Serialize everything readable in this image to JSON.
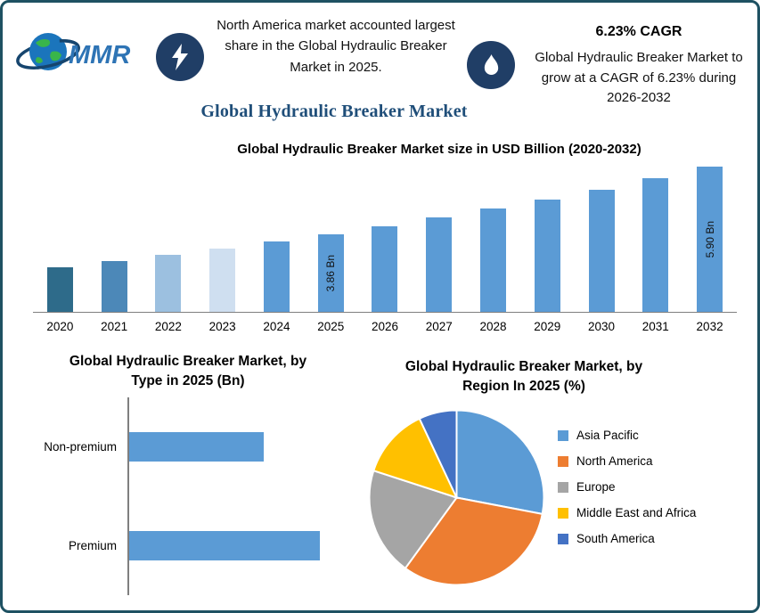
{
  "header": {
    "logo_text": "MMR",
    "highlight": "North America market accounted largest share in the Global Hydraulic Breaker Market in 2025.",
    "cagr_title": "6.23% CAGR",
    "cagr_text": "Global Hydraulic Breaker Market to grow at a CAGR of 6.23% during 2026-2032",
    "main_title": "Global Hydraulic Breaker Market"
  },
  "colors": {
    "accent_navy": "#1f4e79",
    "badge_navy": "#203e66",
    "frame_border": "#1e5162",
    "bar_blue": "#5b9bd5"
  },
  "icons": {
    "left_badge": "lightning-icon",
    "right_badge": "flame-icon",
    "logo": "globe-icon"
  },
  "chart_data": [
    {
      "id": "market_size",
      "type": "bar",
      "title": "Global Hydraulic Breaker Market size in USD Billion (2020-2032)",
      "categories": [
        "2020",
        "2021",
        "2022",
        "2023",
        "2024",
        "2025",
        "2026",
        "2027",
        "2028",
        "2029",
        "2030",
        "2031",
        "2032"
      ],
      "values": [
        2.85,
        3.03,
        3.22,
        3.42,
        3.63,
        3.86,
        4.1,
        4.36,
        4.63,
        4.92,
        5.22,
        5.55,
        5.9
      ],
      "unit": "USD Billion",
      "bar_labels": {
        "2025": "3.86 Bn",
        "2032": "5.90 Bn"
      },
      "bar_colors": [
        "#2e6b8a",
        "#4c88b8",
        "#9cc0e0",
        "#cfdff0",
        "#5b9bd5",
        "#5b9bd5",
        "#5b9bd5",
        "#5b9bd5",
        "#5b9bd5",
        "#5b9bd5",
        "#5b9bd5",
        "#5b9bd5",
        "#5b9bd5"
      ],
      "ylim": [
        1.5,
        6.1
      ],
      "grid": false,
      "legend": "none"
    },
    {
      "id": "by_type",
      "type": "bar",
      "orientation": "horizontal",
      "title": "Global Hydraulic Breaker Market, by Type in 2025 (Bn)",
      "title_lines": [
        "Global Hydraulic Breaker Market, by",
        "Type in 2025 (Bn)"
      ],
      "categories": [
        "Non-premium",
        "Premium"
      ],
      "values": [
        1.6,
        2.26
      ],
      "unit": "Bn",
      "color": "#5b9bd5",
      "xlim": [
        0,
        2.6
      ],
      "grid": false,
      "legend": "none"
    },
    {
      "id": "by_region",
      "type": "pie",
      "title": "Global Hydraulic Breaker Market, by Region In 2025 (%)",
      "title_lines": [
        "Global Hydraulic Breaker Market, by",
        "Region In 2025 (%)"
      ],
      "unit": "%",
      "start_angle_deg": 0,
      "legend_position": "right",
      "slices": [
        {
          "label": "Asia Pacific",
          "value": 28,
          "color": "#5b9bd5"
        },
        {
          "label": "North America",
          "value": 32,
          "color": "#ed7d31"
        },
        {
          "label": "Europe",
          "value": 20,
          "color": "#a5a5a5"
        },
        {
          "label": "Middle East and Africa",
          "value": 13,
          "color": "#ffc000"
        },
        {
          "label": "South America",
          "value": 7,
          "color": "#4472c4"
        }
      ]
    }
  ]
}
